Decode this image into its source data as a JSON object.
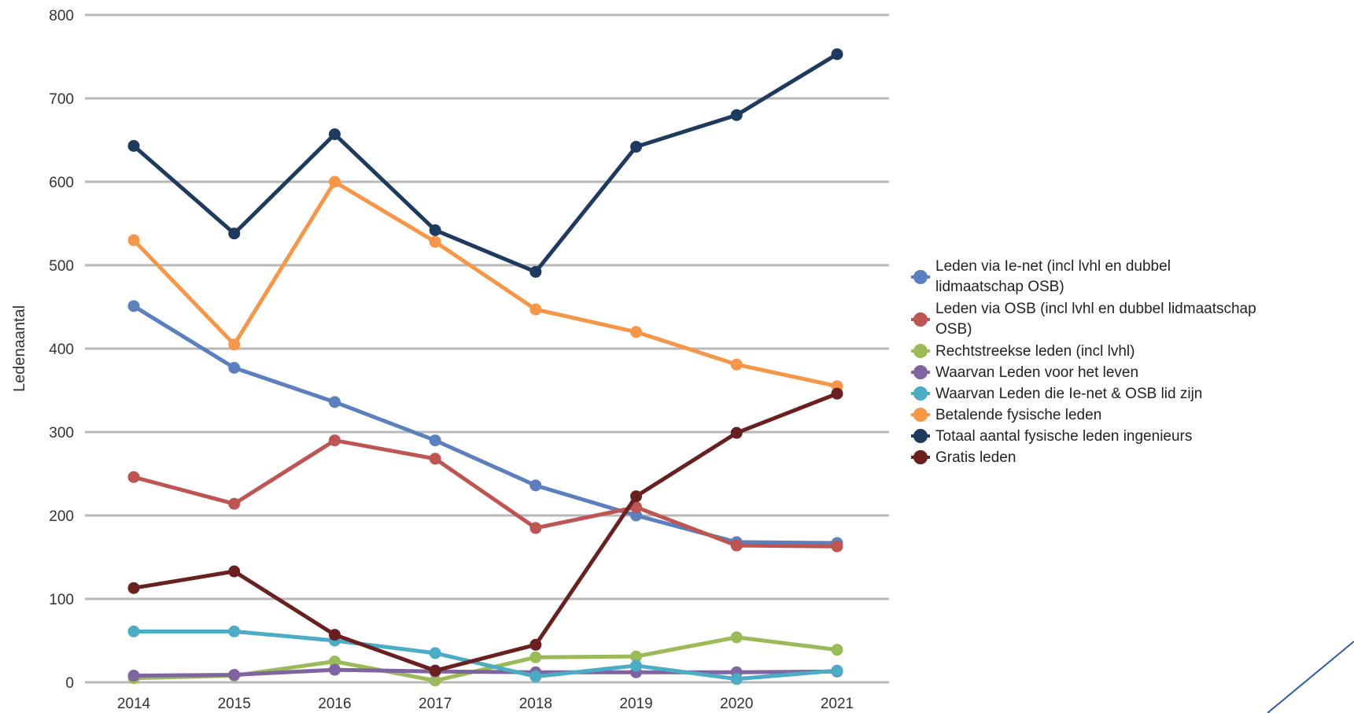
{
  "chart_data": {
    "type": "line",
    "title": "",
    "xlabel": "",
    "ylabel": "Ledenaantal",
    "x": [
      "2014",
      "2015",
      "2016",
      "2017",
      "2018",
      "2019",
      "2020",
      "2021"
    ],
    "ylim": [
      0,
      800
    ],
    "yticks": [
      0,
      100,
      200,
      300,
      400,
      500,
      600,
      700,
      800
    ],
    "grid": true,
    "legend_position": "right",
    "series": [
      {
        "name": "Leden via Ie-net (incl lvhl en dubbel lidmaatschap OSB)",
        "color": "#5b7fbf",
        "values": [
          451,
          377,
          336,
          290,
          236,
          200,
          168,
          167
        ]
      },
      {
        "name": "Leden via OSB (incl lvhl en dubbel lidmaatschap OSB)",
        "color": "#be5552",
        "values": [
          246,
          214,
          290,
          268,
          185,
          210,
          164,
          163
        ]
      },
      {
        "name": "Rechtstreekse leden (incl lvhl)",
        "color": "#9bbb59",
        "values": [
          5,
          8,
          25,
          2,
          30,
          31,
          54,
          39
        ]
      },
      {
        "name": "Waarvan Leden voor het leven",
        "color": "#8064a2",
        "values": [
          8,
          9,
          15,
          13,
          12,
          12,
          12,
          13
        ]
      },
      {
        "name": "Waarvan Leden die Ie-net & OSB lid zijn",
        "color": "#4bacc6",
        "values": [
          61,
          61,
          50,
          35,
          7,
          20,
          4,
          14
        ]
      },
      {
        "name": "Betalende fysische leden",
        "color": "#f79646",
        "values": [
          530,
          405,
          600,
          528,
          447,
          420,
          381,
          355
        ]
      },
      {
        "name": "Totaal aantal fysische leden ingenieurs",
        "color": "#1f3a5f",
        "values": [
          643,
          538,
          657,
          542,
          492,
          642,
          680,
          753
        ]
      },
      {
        "name": "Gratis leden",
        "color": "#6b2020",
        "values": [
          113,
          133,
          57,
          14,
          45,
          223,
          299,
          346
        ]
      }
    ],
    "legend_lines": [
      [
        "Leden via Ie-net (incl lvhl en dubbel",
        "lidmaatschap OSB)"
      ],
      [
        "Leden via OSB (incl lvhl en dubbel lidmaatschap",
        "OSB)"
      ],
      [
        "Rechtstreekse leden (incl lvhl)"
      ],
      [
        "Waarvan Leden voor het leven"
      ],
      [
        "Waarvan Leden die Ie-net & OSB lid zijn"
      ],
      [
        "Betalende fysische leden"
      ],
      [
        "Totaal aantal fysische leden ingenieurs"
      ],
      [
        "Gratis leden"
      ]
    ],
    "decoration_color": "#2e5ba8"
  }
}
